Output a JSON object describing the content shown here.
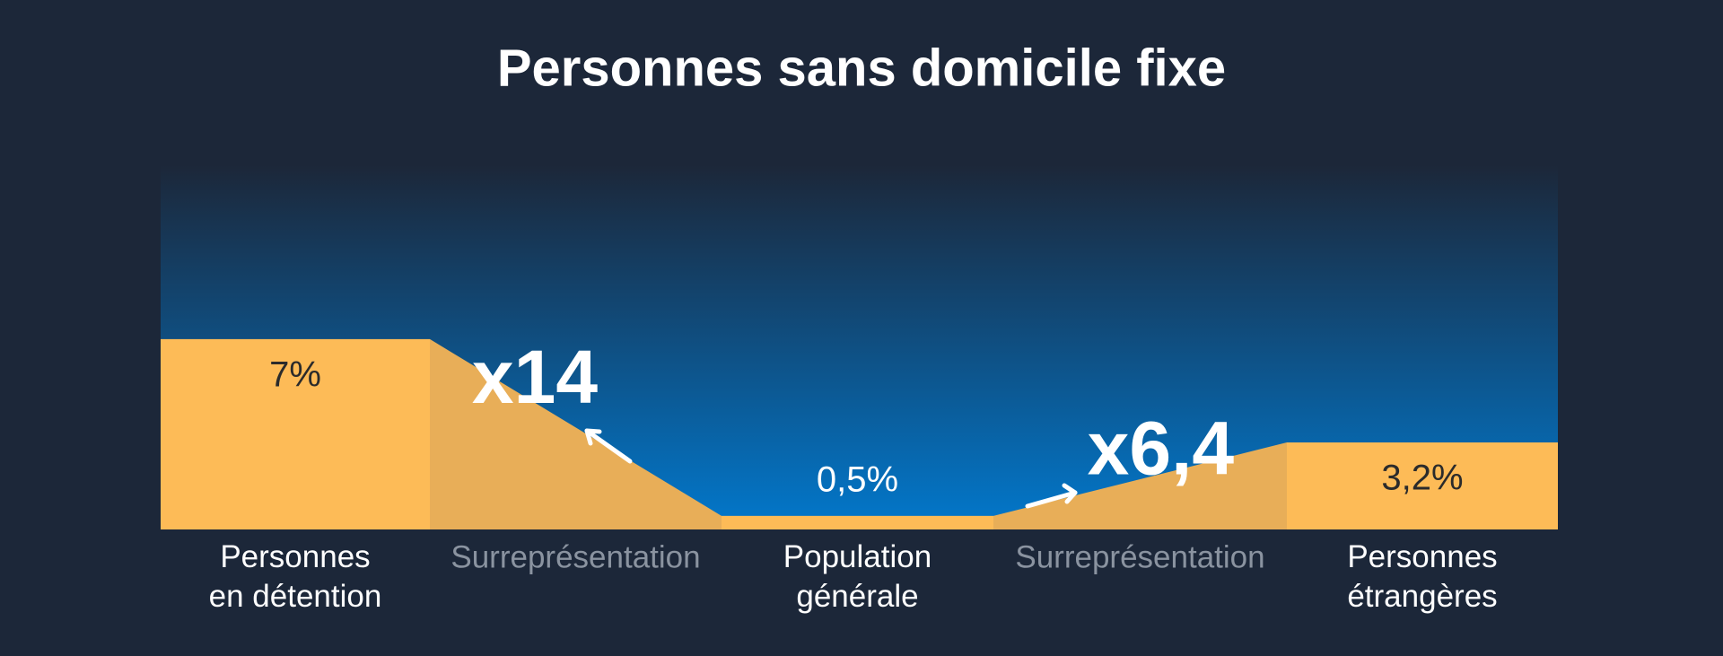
{
  "chart_data": {
    "type": "bar",
    "title": "Personnes sans domicile fixe",
    "categories": [
      [
        "Personnes",
        "en détention"
      ],
      [
        "Population",
        "générale"
      ],
      [
        "Personnes",
        "étrangères"
      ]
    ],
    "values": [
      7,
      0.5,
      3.2
    ],
    "value_labels": [
      "7%",
      "0,5%",
      "3,2%"
    ],
    "color": "#fdbb57",
    "comparisons": [
      {
        "label": "Surreprésentation",
        "value": 14,
        "value_label": "x14"
      },
      {
        "label": "Surreprésentation",
        "value": 6.4,
        "value_label": "x6,4"
      }
    ],
    "comparison_color": "#e8ae58"
  }
}
